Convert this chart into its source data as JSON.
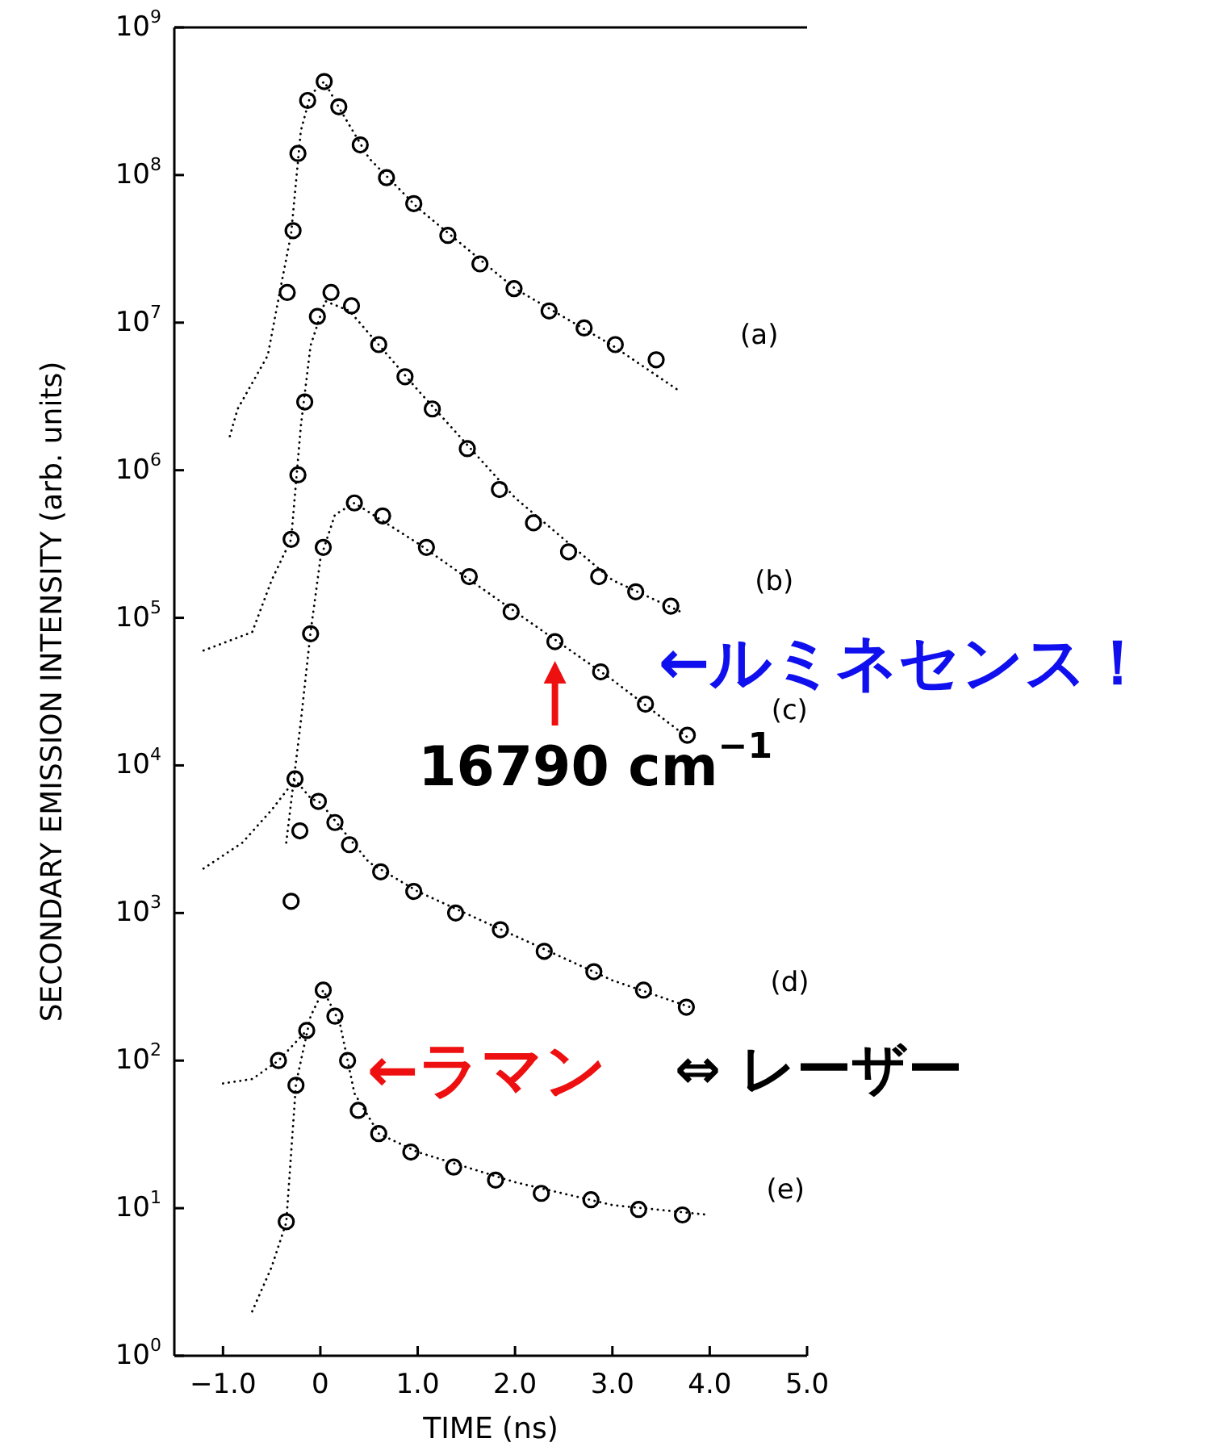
{
  "chart_data": {
    "type": "scatter",
    "xlabel": "TIME (ns)",
    "ylabel": "SECONDARY EMISSION INTENSITY  (arb. units)",
    "log": "y",
    "xlim": [
      -1.5,
      5.0
    ],
    "ylim": [
      1,
      1000000000
    ],
    "xticks": [
      {
        "value": -1,
        "label": "−1.0"
      },
      0,
      {
        "value": 1,
        "label": "1.0"
      },
      {
        "value": 2,
        "label": "2.0"
      },
      {
        "value": 3,
        "label": "3.0"
      },
      {
        "value": 4,
        "label": "4.0"
      },
      {
        "value": 5,
        "label": "5.0"
      }
    ],
    "yticks": [
      {
        "value": 1,
        "label": "10$^{0}$"
      },
      {
        "value": 10,
        "label": "10$^{1}$"
      },
      {
        "value": 100,
        "label": "10$^{2}$"
      },
      {
        "value": 1000,
        "label": "10$^{3}$"
      },
      {
        "value": 10000,
        "label": "10$^{4}$"
      },
      {
        "value": 100000,
        "label": "10$^{5}$"
      },
      {
        "value": 1000000,
        "label": "10$^{6}$"
      },
      {
        "value": 10000000,
        "label": "10$^{7}$"
      },
      {
        "value": 100000000,
        "label": "10$^{8}$"
      },
      {
        "value": 1000000000,
        "label": "10$^{9}$"
      }
    ],
    "grid": false,
    "marker": "circle",
    "series": [
      {
        "type": "line",
        "line_style": "dotted",
        "marker": "none",
        "color": "#000000",
        "x": [
          -0.93,
          -0.85,
          -0.54,
          -0.41,
          -0.3,
          -0.2,
          -0.1,
          0.04,
          0.2,
          0.5,
          1.0,
          2.0,
          3.0,
          3.7
        ],
        "values": [
          1700000,
          2600000,
          6000000,
          17000000,
          40000000,
          200000000,
          350000000,
          430000000,
          280000000,
          130000000,
          60000000,
          17000000,
          7000000,
          3400000
        ]
      },
      {
        "type": "line",
        "line_style": "dotted",
        "marker": "none",
        "color": "#000000",
        "x": [
          -1.2,
          -0.7,
          -0.5,
          -0.3,
          -0.2,
          -0.1,
          0.05,
          0.3,
          1.0,
          2.0,
          3.0,
          3.7
        ],
        "values": [
          60000,
          80000,
          180000,
          340000,
          2000000,
          7000000,
          14000000,
          12000000,
          3500000,
          650000,
          180000,
          110000
        ]
      },
      {
        "type": "line",
        "line_style": "dotted",
        "marker": "none",
        "color": "#000000",
        "x": [
          -0.35,
          -0.2,
          -0.1,
          0.0,
          0.15,
          0.35,
          1.0,
          2.0,
          3.0,
          3.8
        ],
        "values": [
          3000,
          20000,
          80000,
          250000,
          500000,
          600000,
          320000,
          110000,
          38000,
          15000
        ]
      },
      {
        "type": "line",
        "line_style": "dotted",
        "marker": "none",
        "color": "#000000",
        "x": [
          -1.2,
          -0.8,
          -0.5,
          -0.26,
          -0.1,
          0.0,
          0.5,
          1.0,
          2.0,
          3.0,
          3.8
        ],
        "values": [
          2000,
          3000,
          5000,
          8000,
          6000,
          5600,
          2200,
          1400,
          700,
          350,
          230
        ]
      },
      {
        "type": "line",
        "line_style": "dotted",
        "marker": "none",
        "color": "#000000",
        "x": [
          -0.7,
          -0.5,
          -0.35,
          -0.25,
          -0.1,
          0.03,
          0.2,
          0.35,
          0.6,
          1.0,
          2.0,
          3.0,
          4.0
        ],
        "values": [
          2,
          4,
          8,
          70,
          200,
          300,
          180,
          60,
          32,
          24,
          15,
          10.5,
          9
        ]
      },
      {
        "type": "line",
        "line_style": "dotted",
        "marker": "none",
        "color": "#000000",
        "x": [
          -1.0,
          -0.7,
          -0.43,
          -0.14
        ],
        "values": [
          70,
          75,
          100,
          160
        ]
      },
      {
        "name": "(a)",
        "color": "#000000",
        "x": [
          -0.34,
          -0.28,
          -0.23,
          -0.13,
          0.04,
          0.19,
          0.41,
          0.68,
          0.96,
          1.31,
          1.64,
          1.99,
          2.35,
          2.71,
          3.03,
          3.45
        ],
        "values": [
          16000000,
          42000000,
          140000000,
          320000000,
          430000000,
          290000000,
          160000000,
          96000000,
          64000000,
          39000000,
          25000000,
          17000000,
          12000000,
          9200000,
          7100000,
          5600000
        ]
      },
      {
        "name": "(b)",
        "color": "#000000",
        "x": [
          -0.3,
          -0.23,
          -0.16,
          -0.03,
          0.11,
          0.32,
          0.6,
          0.87,
          1.15,
          1.51,
          1.84,
          2.19,
          2.55,
          2.86,
          3.24,
          3.6
        ],
        "values": [
          340000,
          930000,
          2900000,
          11000000,
          16000000,
          13000000,
          7100000,
          4300000,
          2600000,
          1400000,
          740000,
          440000,
          280000,
          190000,
          150000,
          120000
        ]
      },
      {
        "name": "(c)",
        "color": "#000000",
        "x": [
          -0.1,
          0.03,
          0.35,
          0.64,
          1.09,
          1.53,
          1.96,
          2.41,
          2.88,
          3.34,
          3.77
        ],
        "values": [
          78000,
          300000,
          600000,
          490000,
          300000,
          190000,
          110000,
          69000,
          43000,
          26000,
          16000
        ]
      },
      {
        "name": "(d)",
        "color": "#000000",
        "x": [
          -0.3,
          -0.26,
          -0.21,
          -0.02,
          0.15,
          0.3,
          0.62,
          0.96,
          1.39,
          1.85,
          2.3,
          2.81,
          3.32,
          3.76
        ],
        "values": [
          1200,
          8100,
          3600,
          5700,
          4100,
          2900,
          1900,
          1400,
          1000,
          770,
          550,
          400,
          300,
          230
        ]
      },
      {
        "name": "(e)",
        "color": "#000000",
        "x": [
          -0.43,
          -0.35,
          -0.25,
          -0.14,
          0.03,
          0.15,
          0.28,
          0.39,
          0.6,
          0.93,
          1.37,
          1.8,
          2.27,
          2.78,
          3.27,
          3.72
        ],
        "values": [
          100,
          8.1,
          68,
          160,
          300,
          200,
          100,
          46,
          32,
          24,
          19,
          15.5,
          12.6,
          11.4,
          9.8,
          9.0
        ]
      }
    ],
    "annotations": [
      {
        "text": "←ルミネセンス！",
        "x": 3.34,
        "y": 26000
      },
      {
        "text": "16790 cm$^{−1}$",
        "x": 2.41,
        "y": 69000
      },
      {
        "text": "←ラマン",
        "x": 0.28,
        "y": 100
      },
      "⇔ レーザー"
    ]
  }
}
